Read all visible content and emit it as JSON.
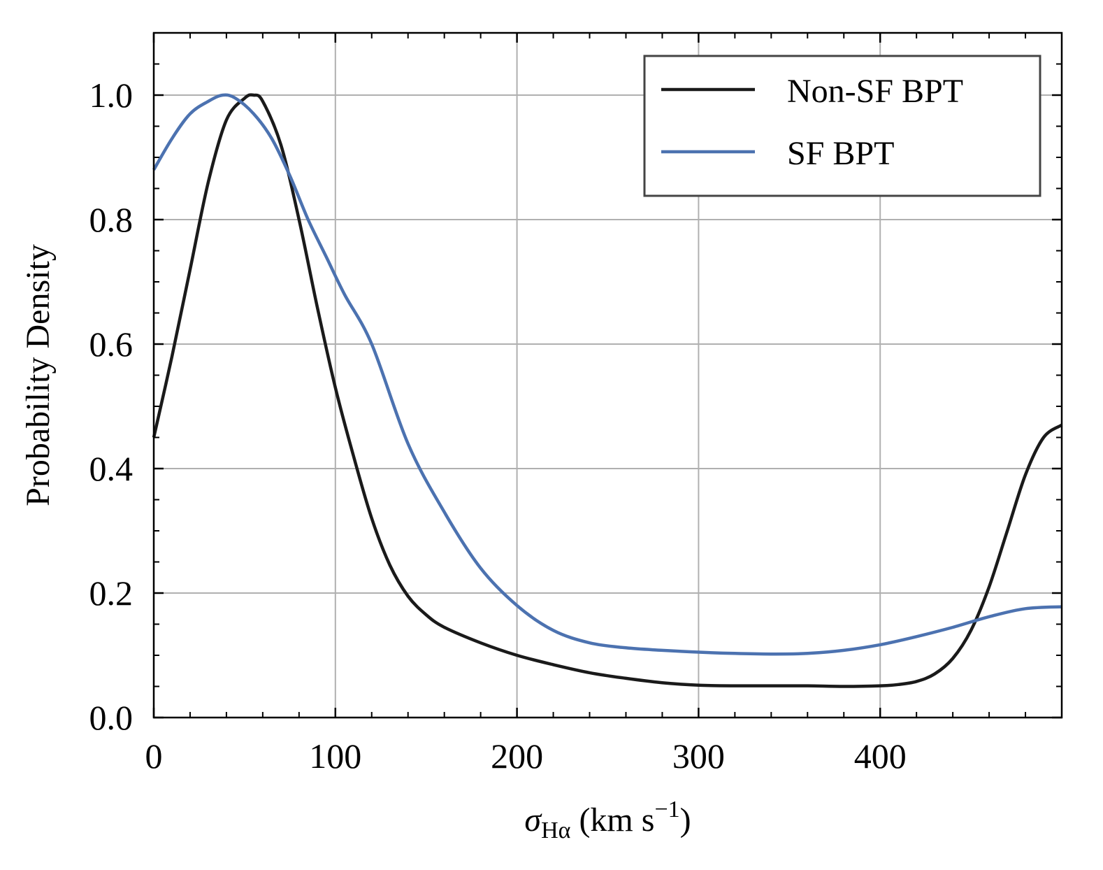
{
  "chart_data": {
    "type": "line",
    "title": "",
    "xlabel": "σHα (km s−1)",
    "xlabel_parts": {
      "symbol": "σ",
      "subscript": "Hα",
      "unit_prefix": " (km s",
      "unit_exp": "−1",
      "unit_suffix": ")"
    },
    "ylabel": "Probability Density",
    "xlim": [
      0,
      500
    ],
    "ylim": [
      0,
      1.1
    ],
    "x_ticks": [
      0,
      100,
      200,
      300,
      400
    ],
    "x_tick_labels": [
      "0",
      "100",
      "200",
      "300",
      "400"
    ],
    "y_ticks": [
      0.0,
      0.2,
      0.4,
      0.6,
      0.8,
      1.0
    ],
    "y_tick_labels": [
      "0.0",
      "0.2",
      "0.4",
      "0.6",
      "0.8",
      "1.0"
    ],
    "grid": true,
    "legend_position": "top-right",
    "series": [
      {
        "name": "Non-SF BPT",
        "color": "#1a1a1a",
        "x": [
          0,
          10,
          20,
          30,
          40,
          50,
          55,
          60,
          70,
          80,
          90,
          100,
          110,
          120,
          130,
          140,
          150,
          160,
          180,
          200,
          220,
          240,
          260,
          280,
          300,
          320,
          340,
          360,
          380,
          400,
          410,
          420,
          430,
          440,
          450,
          460,
          470,
          480,
          490,
          500
        ],
        "values": [
          0.45,
          0.58,
          0.72,
          0.86,
          0.96,
          0.995,
          1.0,
          0.99,
          0.92,
          0.8,
          0.66,
          0.53,
          0.42,
          0.32,
          0.245,
          0.195,
          0.165,
          0.145,
          0.12,
          0.1,
          0.085,
          0.072,
          0.063,
          0.056,
          0.052,
          0.051,
          0.051,
          0.051,
          0.05,
          0.051,
          0.053,
          0.058,
          0.07,
          0.095,
          0.14,
          0.21,
          0.3,
          0.39,
          0.45,
          0.47
        ]
      },
      {
        "name": "SF BPT",
        "color": "#4c72b0",
        "x": [
          0,
          10,
          20,
          30,
          38,
          45,
          55,
          65,
          75,
          85,
          95,
          105,
          120,
          140,
          160,
          180,
          200,
          220,
          240,
          260,
          280,
          300,
          320,
          340,
          360,
          380,
          400,
          420,
          440,
          460,
          480,
          500
        ],
        "values": [
          0.88,
          0.93,
          0.97,
          0.99,
          1.0,
          0.995,
          0.97,
          0.93,
          0.87,
          0.8,
          0.74,
          0.68,
          0.6,
          0.44,
          0.33,
          0.24,
          0.18,
          0.14,
          0.12,
          0.112,
          0.108,
          0.105,
          0.103,
          0.102,
          0.103,
          0.108,
          0.117,
          0.13,
          0.145,
          0.162,
          0.175,
          0.178
        ]
      }
    ]
  }
}
